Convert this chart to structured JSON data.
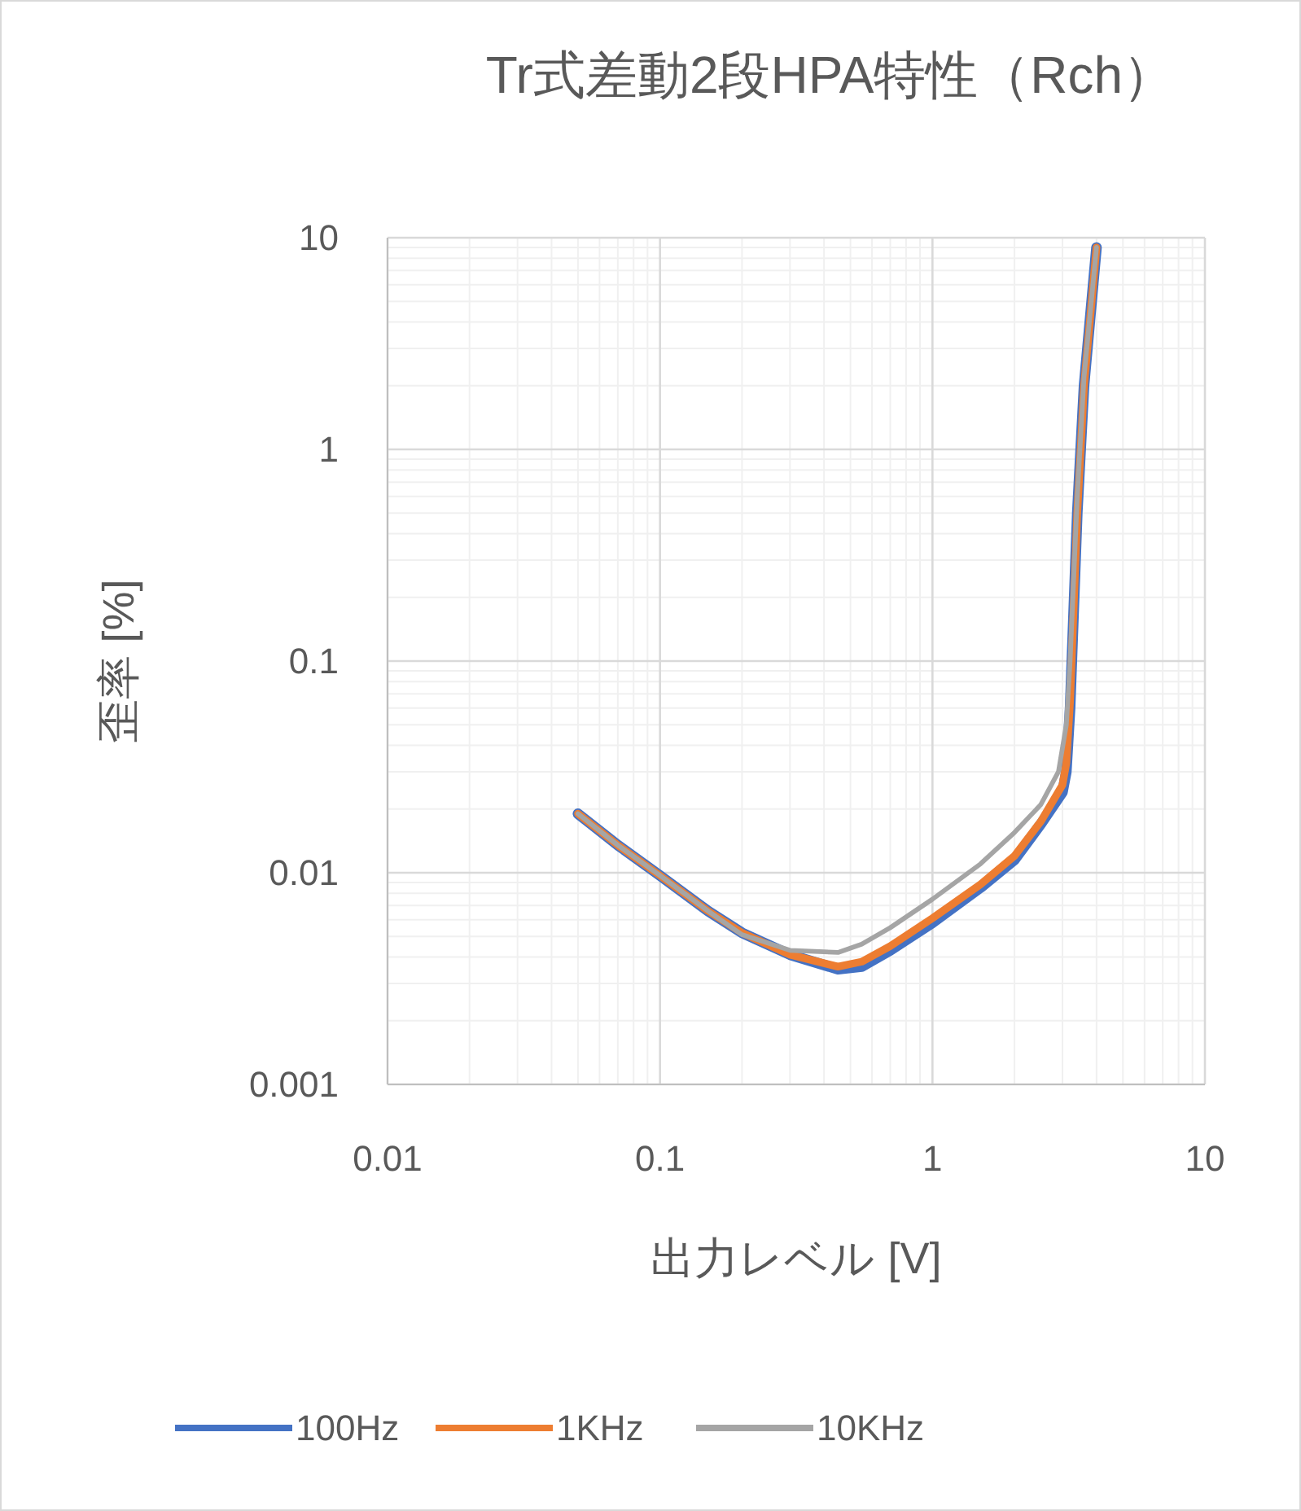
{
  "chart_data": {
    "type": "line",
    "title": "Tr式差動2段HPA特性（Rch）",
    "xlabel": "出力レベル [V]",
    "ylabel": "歪率 [%]",
    "log": "xy",
    "grid": true,
    "legend": "bottom",
    "marker": "none",
    "line_style": "solid",
    "xlim": [
      0.01,
      10
    ],
    "xticks": [
      0.01,
      0.1,
      1,
      10
    ],
    "ylim": [
      0.001,
      10
    ],
    "yticks": [
      0.001,
      0.01,
      0.1,
      1,
      10
    ],
    "series": [
      {
        "name": "100Hz",
        "color": "#4472c4",
        "x": [
          0.05,
          0.07,
          0.1,
          0.15,
          0.2,
          0.3,
          0.45,
          0.55,
          0.7,
          1,
          1.5,
          2,
          2.5,
          3,
          3.1,
          3.2,
          3.4,
          3.6,
          4
        ],
        "values": [
          0.019,
          0.0135,
          0.0097,
          0.0066,
          0.0052,
          0.0041,
          0.0035,
          0.0036,
          0.0043,
          0.0058,
          0.0085,
          0.0115,
          0.017,
          0.024,
          0.03,
          0.06,
          0.5,
          2,
          9
        ]
      },
      {
        "name": "1KHz",
        "color": "#ed7d31",
        "x": [
          0.05,
          0.07,
          0.1,
          0.15,
          0.2,
          0.3,
          0.45,
          0.55,
          0.7,
          1,
          1.5,
          2,
          2.5,
          3,
          3.1,
          3.2,
          3.4,
          3.6,
          4
        ],
        "values": [
          0.019,
          0.0135,
          0.0097,
          0.0066,
          0.0052,
          0.0041,
          0.0036,
          0.0038,
          0.0045,
          0.0061,
          0.0088,
          0.012,
          0.0175,
          0.026,
          0.033,
          0.065,
          0.5,
          2,
          9
        ]
      },
      {
        "name": "10KHz",
        "color": "#a5a5a5",
        "x": [
          0.05,
          0.07,
          0.1,
          0.15,
          0.2,
          0.3,
          0.45,
          0.55,
          0.7,
          1,
          1.5,
          2,
          2.5,
          2.9,
          3.1,
          3.2,
          3.4,
          3.6,
          4
        ],
        "values": [
          0.019,
          0.0135,
          0.0097,
          0.0066,
          0.0051,
          0.0043,
          0.0042,
          0.0046,
          0.0055,
          0.0075,
          0.011,
          0.0155,
          0.021,
          0.03,
          0.05,
          0.1,
          0.6,
          2.2,
          9
        ]
      }
    ]
  }
}
